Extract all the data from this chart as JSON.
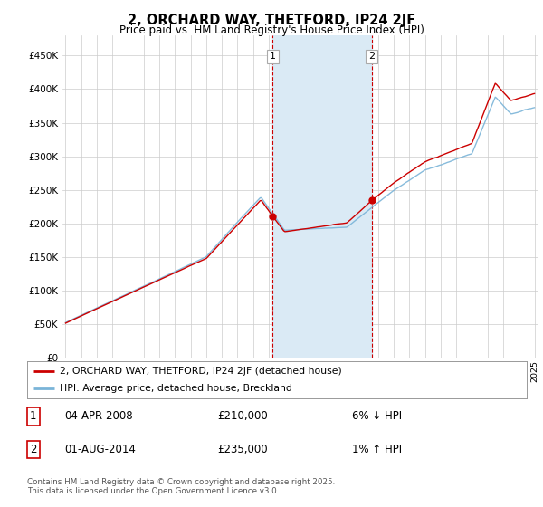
{
  "title": "2, ORCHARD WAY, THETFORD, IP24 2JF",
  "subtitle": "Price paid vs. HM Land Registry's House Price Index (HPI)",
  "legend_line1": "2, ORCHARD WAY, THETFORD, IP24 2JF (detached house)",
  "legend_line2": "HPI: Average price, detached house, Breckland",
  "annotation1_date": "04-APR-2008",
  "annotation1_price": "£210,000",
  "annotation1_hpi": "6% ↓ HPI",
  "annotation2_date": "01-AUG-2014",
  "annotation2_price": "£235,000",
  "annotation2_hpi": "1% ↑ HPI",
  "footnote": "Contains HM Land Registry data © Crown copyright and database right 2025.\nThis data is licensed under the Open Government Licence v3.0.",
  "hpi_color": "#7ab4d8",
  "price_color": "#cc0000",
  "shading_color": "#daeaf5",
  "background_color": "#ffffff",
  "grid_color": "#cccccc",
  "ylim": [
    0,
    480000
  ],
  "yticks": [
    0,
    50000,
    100000,
    150000,
    200000,
    250000,
    300000,
    350000,
    400000,
    450000
  ],
  "start_year": 1995,
  "end_year": 2025,
  "sale1_year": 2008.25,
  "sale2_year": 2014.58,
  "sale1_price": 210000,
  "sale2_price": 235000
}
